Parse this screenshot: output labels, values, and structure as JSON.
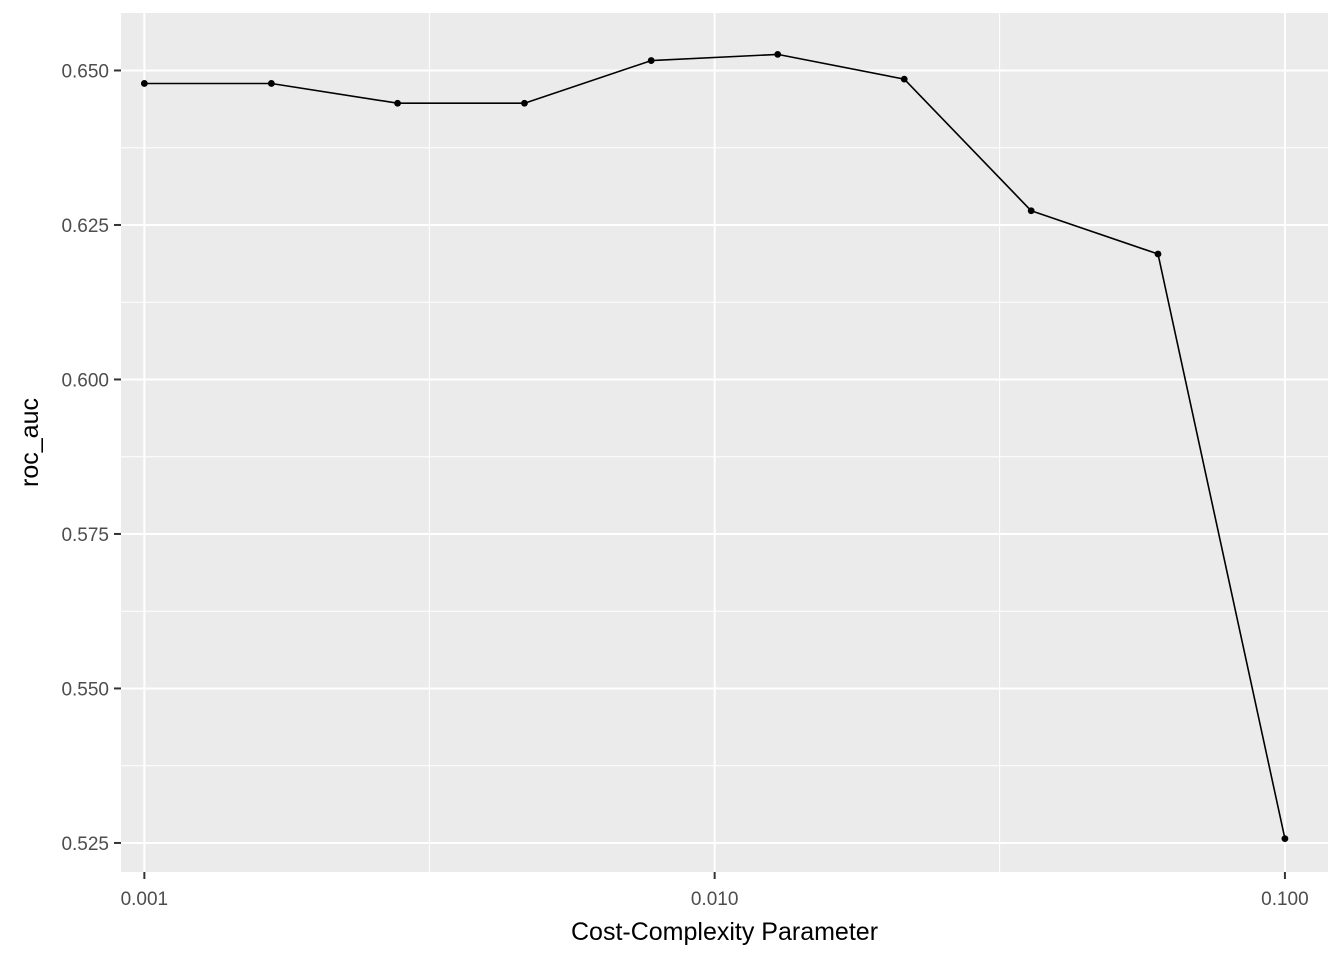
{
  "chart_data": {
    "type": "line",
    "xlabel": "Cost-Complexity Parameter",
    "ylabel": "roc_auc",
    "x_scale": "log10",
    "xlim": [
      0.00091,
      0.119
    ],
    "ylim": [
      0.5203,
      0.6593
    ],
    "x_ticks": [
      {
        "value": 0.001,
        "label": "0.001"
      },
      {
        "value": 0.01,
        "label": "0.010"
      },
      {
        "value": 0.1,
        "label": "0.100"
      }
    ],
    "x_minor_ticks": [
      0.00316,
      0.0316
    ],
    "y_ticks": [
      {
        "value": 0.525,
        "label": "0.525"
      },
      {
        "value": 0.55,
        "label": "0.550"
      },
      {
        "value": 0.575,
        "label": "0.575"
      },
      {
        "value": 0.6,
        "label": "0.600"
      },
      {
        "value": 0.625,
        "label": "0.625"
      },
      {
        "value": 0.65,
        "label": "0.650"
      }
    ],
    "y_minor_ticks": [
      0.5375,
      0.5625,
      0.5875,
      0.6125,
      0.6375
    ],
    "grid": true,
    "series": [
      {
        "x": [
          0.001,
          0.00167,
          0.00278,
          0.00464,
          0.00774,
          0.0129,
          0.0215,
          0.0359,
          0.0599,
          0.1
        ],
        "y": [
          0.6479,
          0.6479,
          0.6447,
          0.6447,
          0.6516,
          0.6526,
          0.6486,
          0.6273,
          0.6203,
          0.5257
        ]
      }
    ],
    "colors": {
      "panel": "#ebebeb",
      "grid": "#ffffff",
      "line": "#000000",
      "point": "#000000",
      "tick_text": "#4d4d4d",
      "tick_mark": "#333333"
    }
  }
}
